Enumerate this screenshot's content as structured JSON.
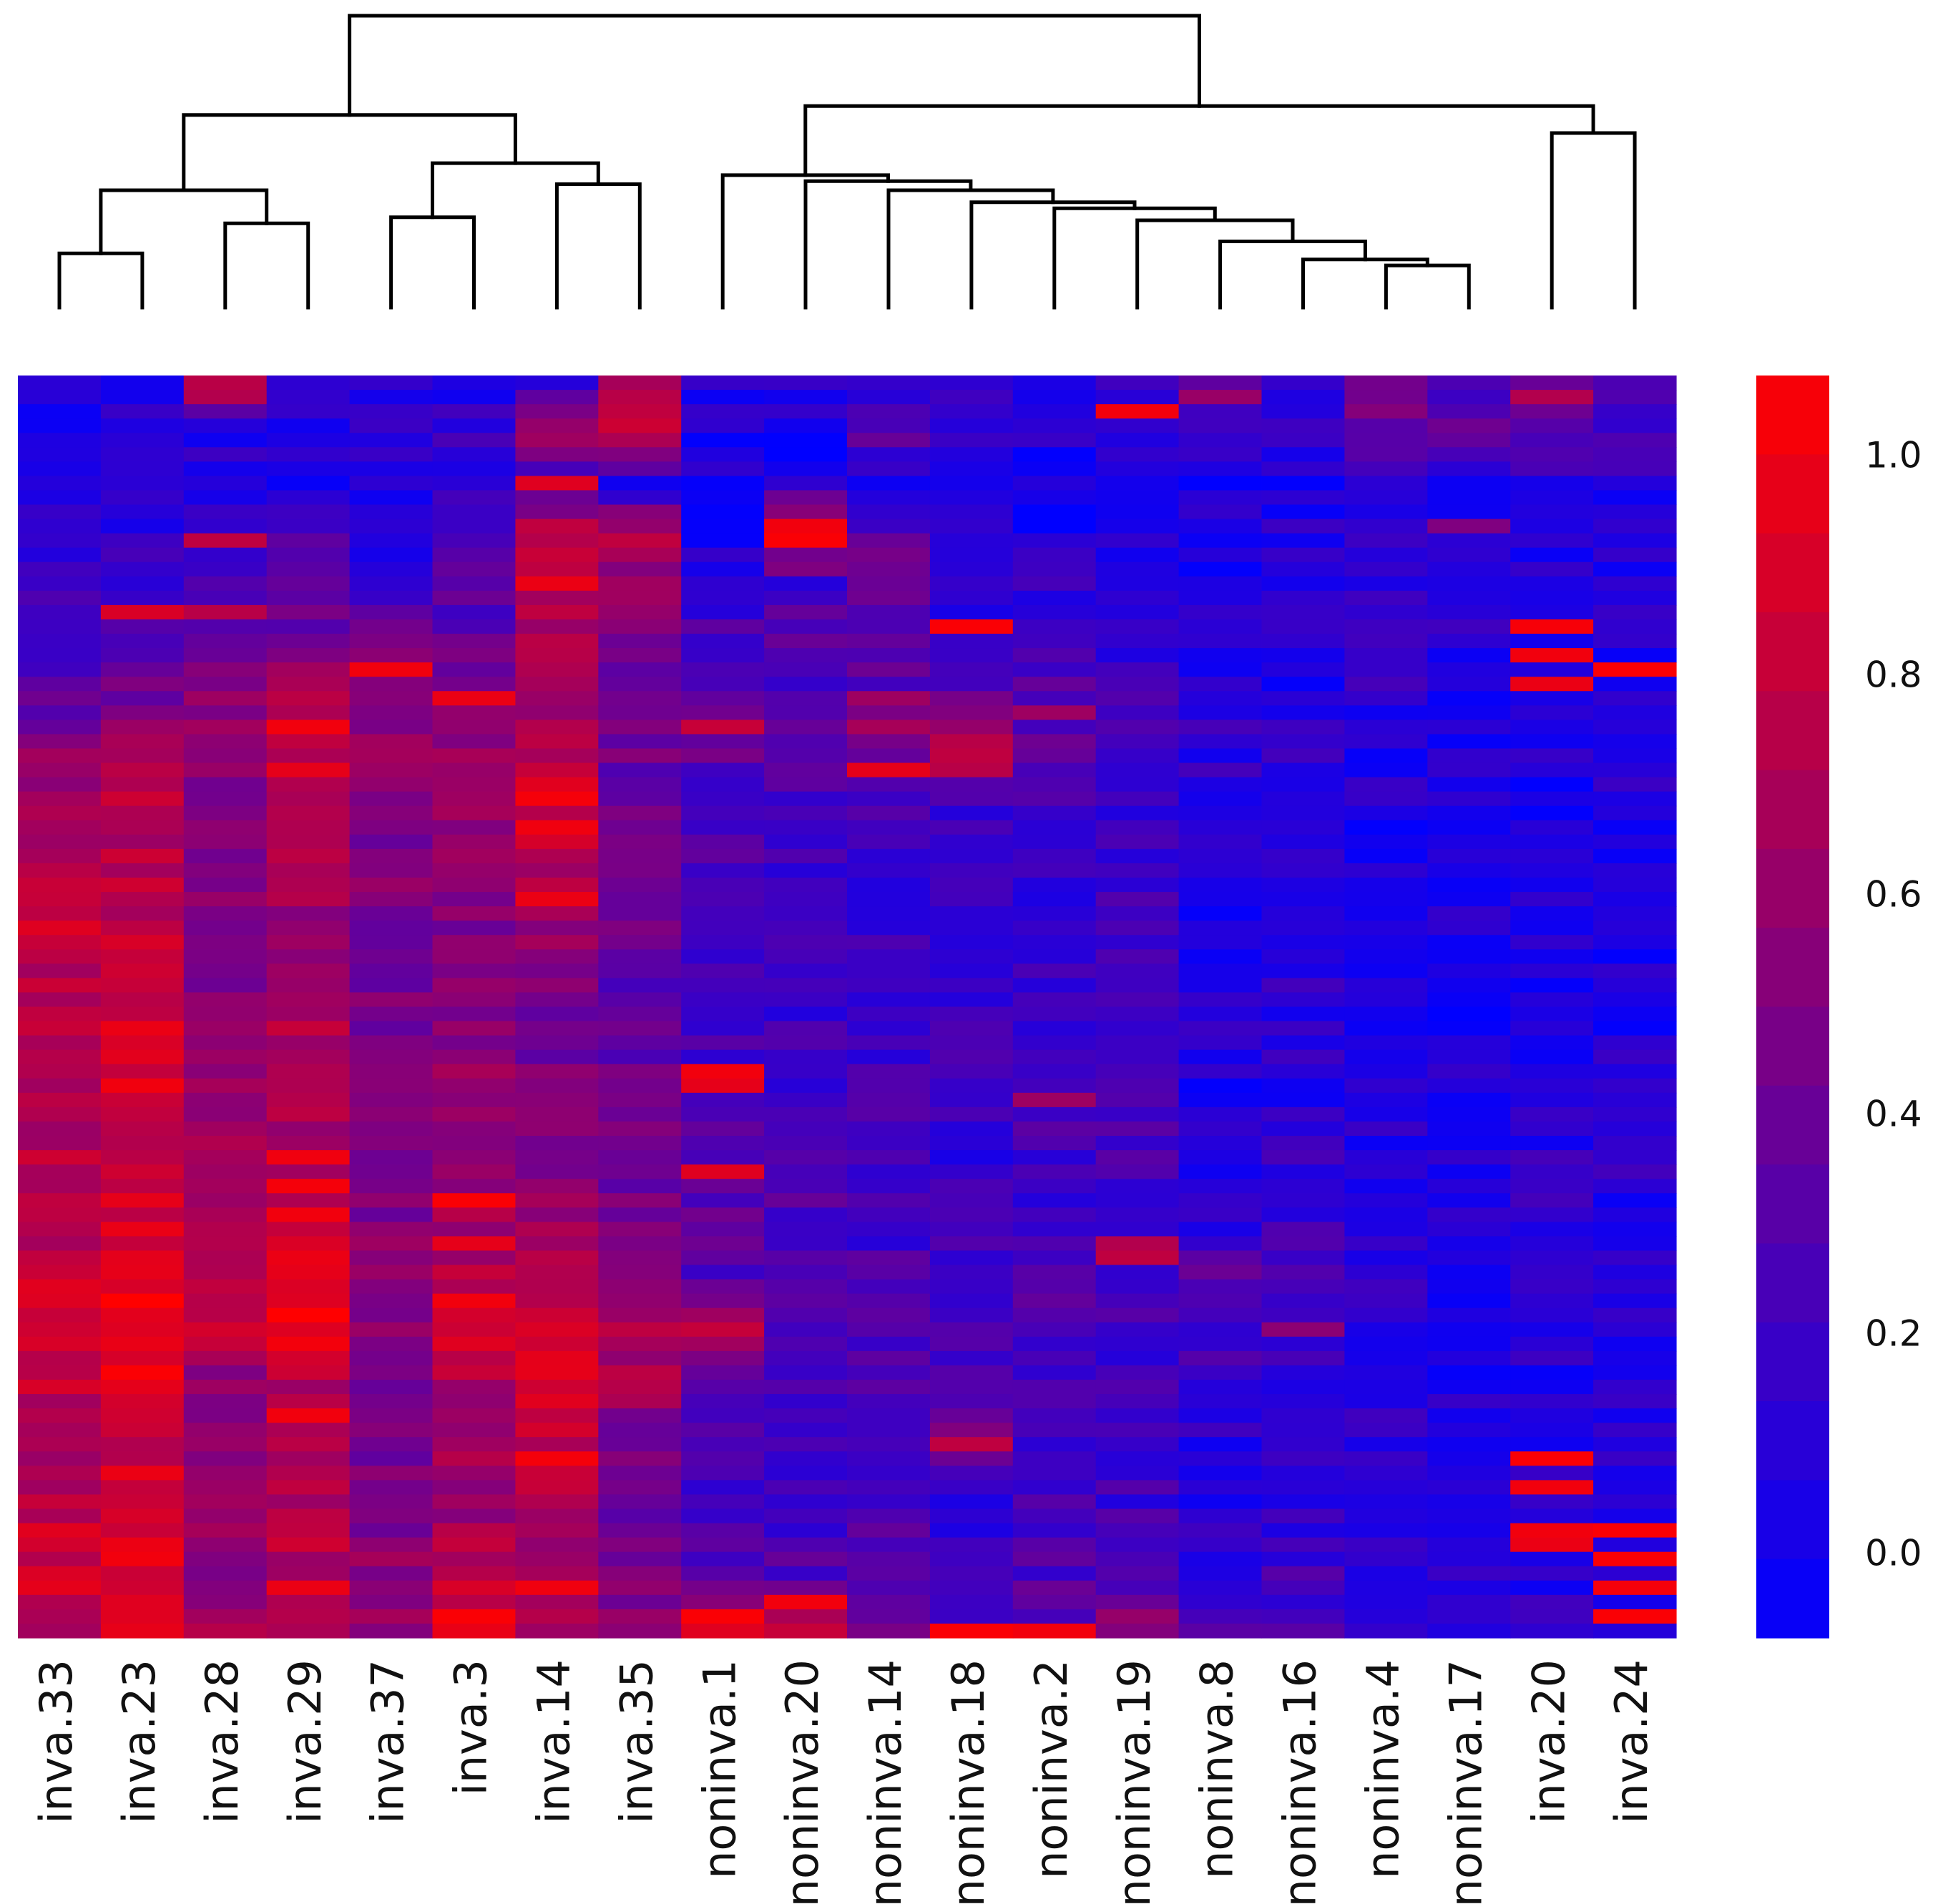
{
  "chart_data": {
    "type": "heatmap",
    "title": "",
    "xlabel": "",
    "ylabel": "",
    "columns": [
      "inva.33",
      "inva.23",
      "inva.28",
      "inva.29",
      "inva.37",
      "inva.3",
      "inva.14",
      "inva.35",
      "noninva.1",
      "noninva.20",
      "noninva.14",
      "noninva.18",
      "noninva.2",
      "noninva.19",
      "noninva.8",
      "noninva.16",
      "noninva.4",
      "noninva.17",
      "inva.20",
      "inva.24"
    ],
    "row_count": 88,
    "column_profiles": [
      [
        0.1,
        0.12,
        0.08,
        0.15,
        0.18,
        0.3,
        0.35,
        0.45,
        0.62,
        0.7,
        0.78,
        0.8,
        0.72,
        0.75,
        0.7,
        0.68,
        0.74,
        0.72,
        0.8,
        0.85,
        0.75,
        0.7,
        0.62,
        0.78,
        0.8,
        0.74
      ],
      [
        0.12,
        0.1,
        0.1,
        0.14,
        0.22,
        0.38,
        0.4,
        0.55,
        0.7,
        0.72,
        0.7,
        0.76,
        0.75,
        0.82,
        0.84,
        0.8,
        0.78,
        0.85,
        0.9,
        0.95,
        0.88,
        0.8,
        0.72,
        0.8,
        0.88,
        0.9
      ],
      [
        0.65,
        0.14,
        0.12,
        0.28,
        0.32,
        0.45,
        0.55,
        0.6,
        0.52,
        0.5,
        0.48,
        0.55,
        0.5,
        0.52,
        0.55,
        0.62,
        0.58,
        0.6,
        0.7,
        0.75,
        0.55,
        0.5,
        0.52,
        0.55,
        0.58,
        0.62
      ],
      [
        0.15,
        0.14,
        0.12,
        0.3,
        0.4,
        0.42,
        0.6,
        0.75,
        0.7,
        0.72,
        0.65,
        0.6,
        0.62,
        0.7,
        0.66,
        0.68,
        0.72,
        0.78,
        0.9,
        0.92,
        0.7,
        0.66,
        0.64,
        0.7,
        0.72,
        0.75
      ],
      [
        0.12,
        0.15,
        0.1,
        0.18,
        0.2,
        0.4,
        0.5,
        0.58,
        0.52,
        0.48,
        0.5,
        0.46,
        0.44,
        0.48,
        0.5,
        0.52,
        0.48,
        0.5,
        0.55,
        0.52,
        0.5,
        0.46,
        0.48,
        0.52,
        0.58,
        0.62
      ],
      [
        0.15,
        0.2,
        0.12,
        0.35,
        0.3,
        0.38,
        0.45,
        0.6,
        0.62,
        0.58,
        0.55,
        0.5,
        0.52,
        0.55,
        0.56,
        0.58,
        0.6,
        0.66,
        0.72,
        0.85,
        0.7,
        0.62,
        0.6,
        0.64,
        0.72,
        0.9
      ],
      [
        0.12,
        0.7,
        0.15,
        0.78,
        0.62,
        0.7,
        0.6,
        0.72,
        0.8,
        0.82,
        0.65,
        0.55,
        0.5,
        0.45,
        0.48,
        0.5,
        0.55,
        0.6,
        0.65,
        0.78,
        0.82,
        0.75,
        0.7,
        0.62,
        0.6,
        0.7
      ],
      [
        0.7,
        0.7,
        0.1,
        0.75,
        0.55,
        0.45,
        0.4,
        0.45,
        0.4,
        0.42,
        0.38,
        0.4,
        0.35,
        0.38,
        0.4,
        0.42,
        0.45,
        0.48,
        0.52,
        0.65,
        0.68,
        0.45,
        0.4,
        0.42,
        0.5,
        0.55
      ],
      [
        0.12,
        0.08,
        0.1,
        0.08,
        0.15,
        0.3,
        0.35,
        0.48,
        0.3,
        0.28,
        0.3,
        0.25,
        0.22,
        0.25,
        0.28,
        0.3,
        0.32,
        0.35,
        0.3,
        0.72,
        0.4,
        0.3,
        0.28,
        0.3,
        0.35,
        0.78
      ],
      [
        0.15,
        0.1,
        0.12,
        0.8,
        0.25,
        0.35,
        0.3,
        0.3,
        0.28,
        0.25,
        0.22,
        0.25,
        0.2,
        0.22,
        0.25,
        0.3,
        0.32,
        0.28,
        0.3,
        0.35,
        0.3,
        0.25,
        0.22,
        0.28,
        0.32,
        0.82
      ],
      [
        0.12,
        0.4,
        0.1,
        0.35,
        0.48,
        0.3,
        0.35,
        0.6,
        0.3,
        0.25,
        0.2,
        0.22,
        0.18,
        0.2,
        0.22,
        0.25,
        0.28,
        0.25,
        0.28,
        0.3,
        0.35,
        0.3,
        0.25,
        0.3,
        0.4,
        0.5
      ],
      [
        0.15,
        0.18,
        0.1,
        0.15,
        0.2,
        0.18,
        0.22,
        0.7,
        0.22,
        0.25,
        0.18,
        0.2,
        0.22,
        0.25,
        0.2,
        0.18,
        0.2,
        0.22,
        0.28,
        0.3,
        0.25,
        0.6,
        0.2,
        0.22,
        0.25,
        0.35
      ],
      [
        0.1,
        0.12,
        0.08,
        0.1,
        0.18,
        0.22,
        0.3,
        0.35,
        0.25,
        0.2,
        0.2,
        0.18,
        0.22,
        0.2,
        0.25,
        0.25,
        0.22,
        0.28,
        0.3,
        0.25,
        0.28,
        0.25,
        0.22,
        0.25,
        0.3,
        0.35
      ],
      [
        0.3,
        0.12,
        0.1,
        0.15,
        0.15,
        0.15,
        0.22,
        0.3,
        0.18,
        0.2,
        0.22,
        0.25,
        0.28,
        0.25,
        0.22,
        0.3,
        0.28,
        0.25,
        0.3,
        0.28,
        0.22,
        0.2,
        0.22,
        0.25,
        0.3,
        0.6
      ],
      [
        0.3,
        0.15,
        0.08,
        0.12,
        0.1,
        0.12,
        0.15,
        0.2,
        0.15,
        0.1,
        0.12,
        0.1,
        0.15,
        0.18,
        0.12,
        0.1,
        0.15,
        0.2,
        0.38,
        0.28,
        0.25,
        0.15,
        0.12,
        0.15,
        0.2,
        0.3
      ],
      [
        0.15,
        0.2,
        0.1,
        0.15,
        0.12,
        0.15,
        0.12,
        0.18,
        0.15,
        0.12,
        0.18,
        0.2,
        0.15,
        0.18,
        0.12,
        0.15,
        0.2,
        0.22,
        0.25,
        0.28,
        0.2,
        0.18,
        0.15,
        0.2,
        0.25,
        0.3
      ],
      [
        0.35,
        0.4,
        0.15,
        0.18,
        0.15,
        0.2,
        0.18,
        0.12,
        0.15,
        0.1,
        0.12,
        0.15,
        0.12,
        0.1,
        0.08,
        0.12,
        0.15,
        0.18,
        0.2,
        0.15,
        0.12,
        0.18,
        0.15,
        0.12,
        0.15,
        0.18
      ],
      [
        0.3,
        0.35,
        0.1,
        0.12,
        0.1,
        0.15,
        0.12,
        0.1,
        0.12,
        0.15,
        0.12,
        0.1,
        0.08,
        0.12,
        0.1,
        0.12,
        0.15,
        0.1,
        0.15,
        0.1,
        0.12,
        0.1,
        0.12,
        0.15,
        0.12,
        0.15
      ],
      [
        0.32,
        0.35,
        0.12,
        0.1,
        0.12,
        0.1,
        0.15,
        0.12,
        0.1,
        0.12,
        0.1,
        0.12,
        0.1,
        0.15,
        0.12,
        0.15,
        0.18,
        0.2,
        0.22,
        0.15,
        0.12,
        0.1,
        0.12,
        0.12,
        0.15,
        0.18
      ],
      [
        0.3,
        0.3,
        0.12,
        0.15,
        0.15,
        0.12,
        0.1,
        0.12,
        0.15,
        0.12,
        0.15,
        0.12,
        0.1,
        0.12,
        0.15,
        0.18,
        0.15,
        0.12,
        0.15,
        0.12,
        0.1,
        0.15,
        0.12,
        0.1,
        0.12,
        0.15
      ]
    ],
    "column_accents": [
      [],
      [
        [
          16,
          0.85
        ],
        [
          45,
          0.92
        ],
        [
          57,
          0.9
        ],
        [
          62,
          0.9
        ],
        [
          76,
          0.92
        ],
        [
          82,
          0.95
        ],
        [
          86,
          0.88
        ]
      ],
      [
        [
          1,
          0.7
        ],
        [
          11,
          0.75
        ],
        [
          16,
          0.72
        ]
      ],
      [
        [
          24,
          0.95
        ],
        [
          27,
          0.9
        ],
        [
          54,
          0.94
        ],
        [
          56,
          0.96
        ],
        [
          58,
          0.95
        ],
        [
          62,
          0.9
        ],
        [
          72,
          0.95
        ],
        [
          84,
          0.92
        ]
      ],
      [
        [
          20,
          0.95
        ]
      ],
      [
        [
          22,
          0.92
        ],
        [
          57,
          0.98
        ],
        [
          60,
          0.9
        ],
        [
          64,
          0.95
        ],
        [
          86,
          0.98
        ]
      ],
      [
        [
          7,
          0.88
        ],
        [
          14,
          0.92
        ],
        [
          29,
          0.96
        ],
        [
          31,
          0.94
        ],
        [
          36,
          0.92
        ],
        [
          69,
          0.9
        ],
        [
          75,
          0.96
        ],
        [
          84,
          0.94
        ]
      ],
      [
        [
          1,
          0.72
        ],
        [
          3,
          0.8
        ]
      ],
      [
        [
          24,
          0.78
        ],
        [
          48,
          0.95
        ],
        [
          49,
          0.9
        ],
        [
          55,
          0.88
        ],
        [
          86,
          0.98
        ]
      ],
      [
        [
          10,
          0.95
        ],
        [
          11,
          0.98
        ],
        [
          85,
          0.95
        ]
      ],
      [
        [
          22,
          0.62
        ],
        [
          27,
          0.9
        ]
      ],
      [
        [
          17,
          0.98
        ],
        [
          25,
          0.72
        ],
        [
          26,
          0.75
        ],
        [
          27,
          0.72
        ],
        [
          74,
          0.75
        ],
        [
          87,
          0.98
        ]
      ],
      [
        [
          23,
          0.62
        ],
        [
          50,
          0.62
        ],
        [
          87,
          0.95
        ]
      ],
      [
        [
          2,
          0.95
        ],
        [
          60,
          0.7
        ],
        [
          61,
          0.75
        ]
      ],
      [
        [
          1,
          0.6
        ]
      ],
      [
        [
          66,
          0.55
        ]
      ],
      [
        [
          2,
          0.52
        ]
      ],
      [
        [
          10,
          0.5
        ]
      ],
      [
        [
          1,
          0.7
        ],
        [
          17,
          0.97
        ],
        [
          19,
          0.95
        ],
        [
          21,
          0.92
        ],
        [
          75,
          0.98
        ],
        [
          77,
          0.95
        ],
        [
          80,
          0.95
        ],
        [
          81,
          0.92
        ]
      ],
      [
        [
          20,
          0.98
        ],
        [
          80,
          0.98
        ],
        [
          82,
          0.98
        ],
        [
          84,
          0.96
        ],
        [
          86,
          0.98
        ]
      ]
    ],
    "color_scale": {
      "min": 0.0,
      "max": 1.0,
      "low_color": "#0000ff",
      "high_color": "#ff0000",
      "ticks": [
        "0.0",
        "0.2",
        "0.4",
        "0.6",
        "0.8",
        "1.0"
      ],
      "tick_values": [
        0.0,
        0.2,
        0.4,
        0.6,
        0.8,
        1.0
      ],
      "placement": "right"
    },
    "dendrogram": {
      "leaves": 20,
      "merges": [
        [
          0,
          1,
          0.18
        ],
        [
          2,
          3,
          0.28
        ],
        [
          4,
          5,
          0.3
        ],
        [
          6,
          7,
          0.41
        ],
        [
          16,
          17,
          0.14
        ],
        [
          -5,
          15,
          0.16
        ],
        [
          -6,
          14,
          0.22
        ],
        [
          -7,
          13,
          0.29
        ],
        [
          -8,
          12,
          0.33
        ],
        [
          -9,
          11,
          0.35
        ],
        [
          -10,
          10,
          0.39
        ],
        [
          -11,
          9,
          0.42
        ],
        [
          -12,
          8,
          0.44
        ],
        [
          18,
          19,
          0.58
        ],
        [
          -14,
          -13,
          0.67
        ],
        [
          -1,
          -2,
          0.39
        ],
        [
          -3,
          -4,
          0.48
        ],
        [
          -16,
          -17,
          0.64
        ],
        [
          -18,
          -15,
          0.97
        ]
      ]
    }
  }
}
